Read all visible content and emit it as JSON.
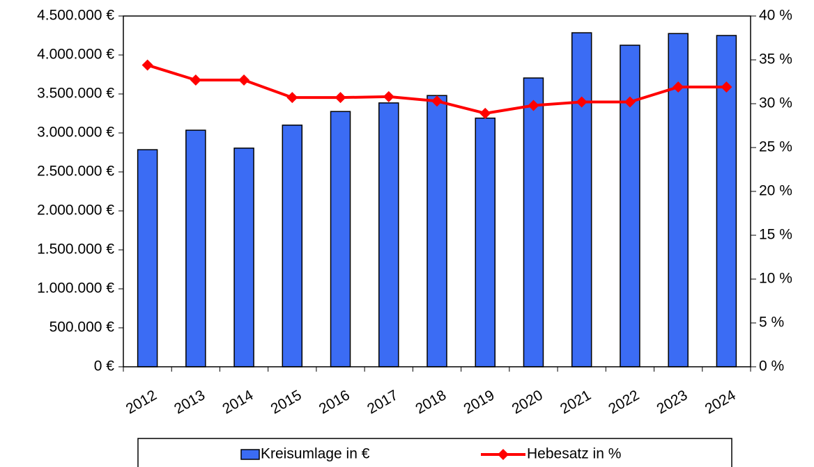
{
  "chart_data": {
    "type": "bar",
    "categories": [
      "2012",
      "2013",
      "2014",
      "2015",
      "2016",
      "2017",
      "2018",
      "2019",
      "2020",
      "2021",
      "2022",
      "2023",
      "2024"
    ],
    "series": [
      {
        "name": "Kreisumlage in €",
        "type": "bar",
        "color": "#3b6cf4",
        "values": [
          2785000,
          3035000,
          2805000,
          3100000,
          3275000,
          3385000,
          3480000,
          3190000,
          3705000,
          4285000,
          4125000,
          4275000,
          4250000
        ]
      },
      {
        "name": "Hebesatz in %",
        "type": "line",
        "axis": "y2",
        "color": "#ff0000",
        "values": [
          34.4,
          32.7,
          32.7,
          30.7,
          30.7,
          30.8,
          30.3,
          28.9,
          29.8,
          30.2,
          30.2,
          31.9,
          31.9
        ]
      }
    ],
    "ylim": [
      0,
      4500000
    ],
    "yticks": [
      {
        "value": 0,
        "label": "0 €"
      },
      {
        "value": 500000,
        "label": "500.000 €"
      },
      {
        "value": 1000000,
        "label": "1.000.000 €"
      },
      {
        "value": 1500000,
        "label": "1.500.000 €"
      },
      {
        "value": 2000000,
        "label": "2.000.000 €"
      },
      {
        "value": 2500000,
        "label": "2.500.000 €"
      },
      {
        "value": 3000000,
        "label": "3.000.000 €"
      },
      {
        "value": 3500000,
        "label": "3.500.000 €"
      },
      {
        "value": 4000000,
        "label": "4.000.000 €"
      },
      {
        "value": 4500000,
        "label": "4.500.000 €"
      }
    ],
    "y2lim": [
      0,
      40
    ],
    "y2ticks": [
      {
        "value": 0,
        "label": "0 %"
      },
      {
        "value": 5,
        "label": "5 %"
      },
      {
        "value": 10,
        "label": "10 %"
      },
      {
        "value": 15,
        "label": "15 %"
      },
      {
        "value": 20,
        "label": "20 %"
      },
      {
        "value": 25,
        "label": "25 %"
      },
      {
        "value": 30,
        "label": "30 %"
      },
      {
        "value": 35,
        "label": "35 %"
      },
      {
        "value": 40,
        "label": "40 %"
      }
    ],
    "legend": "bottom",
    "grid": false
  }
}
